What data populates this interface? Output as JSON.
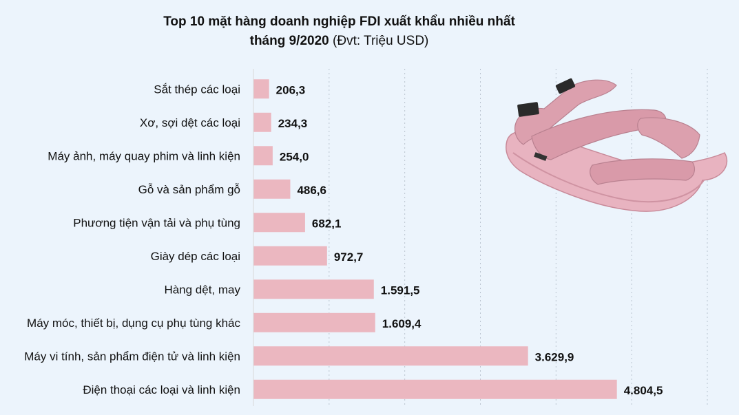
{
  "title_line1": "Top 10 mặt hàng doanh nghiệp FDI xuất khẩu nhiều nhất",
  "title_line2": "tháng 9/2020",
  "title_unit": "(Đvt: Triệu USD)",
  "colors": {
    "background": "#ecf4fc",
    "bar": "#ebb7c0",
    "sandal": "#e0a6b3",
    "strap_tag": "#2a2a2a"
  },
  "illustration": "pink-sandal",
  "chart_data": {
    "type": "bar",
    "orientation": "horizontal",
    "categories": [
      "Sắt thép các loại",
      "Xơ, sợi dệt các loại",
      "Máy ảnh, máy quay phim và linh kiện",
      "Gỗ và sản phẩm gỗ",
      "Phương tiện vận tải và phụ tùng",
      "Giày dép các loại",
      "Hàng dệt, may",
      "Máy móc, thiết bị, dụng cụ phụ tùng khác",
      "Máy vi tính, sản phẩm điện tử và linh kiện",
      "Điện thoại các loại và linh kiện"
    ],
    "values": [
      206.3,
      234.3,
      254.0,
      486.6,
      682.1,
      972.7,
      1591.5,
      1609.4,
      3629.9,
      4804.5
    ],
    "value_labels": [
      "206,3",
      "234,3",
      "254,0",
      "486,6",
      "682,1",
      "972,7",
      "1.591,5",
      "1.609,4",
      "3.629,9",
      "4.804,5"
    ],
    "xlim": [
      0,
      6000
    ],
    "grid": true,
    "legend": "none"
  }
}
